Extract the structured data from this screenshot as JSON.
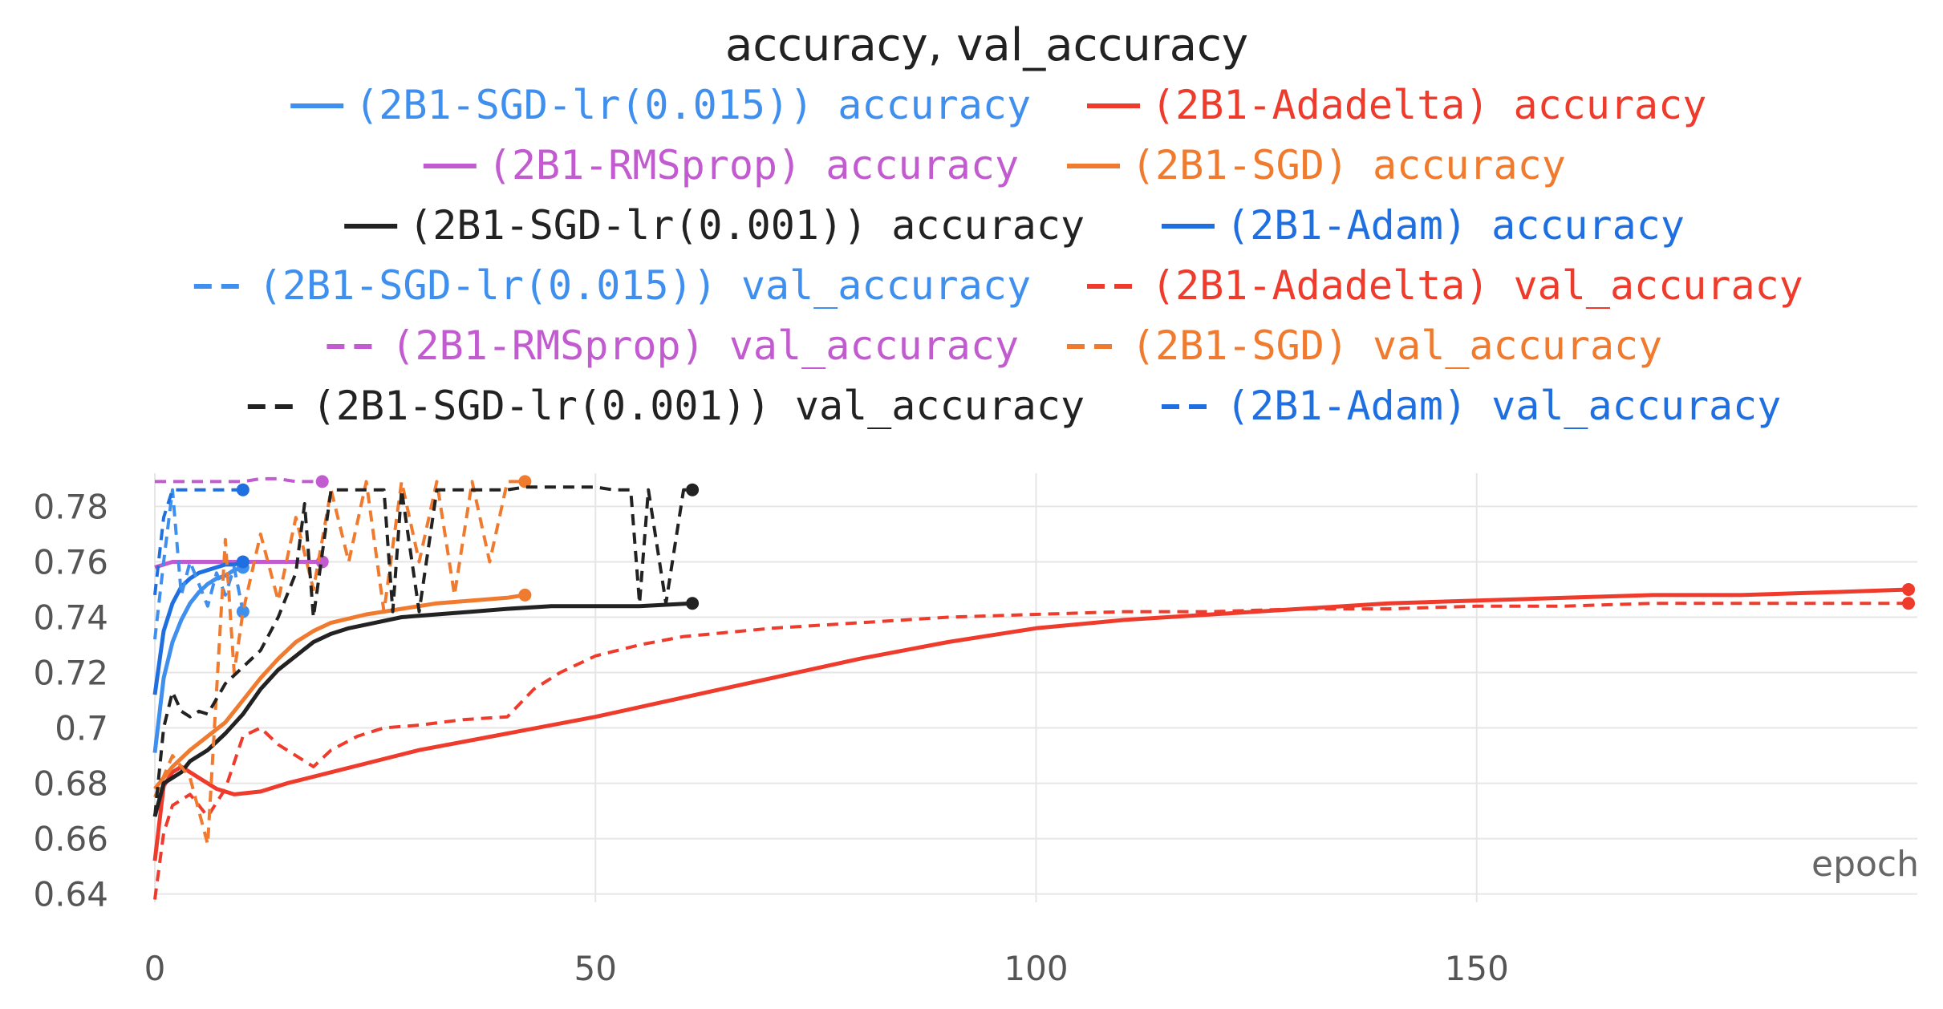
{
  "chart_data": {
    "type": "line",
    "title": "accuracy, val_accuracy",
    "xlabel": "epoch",
    "ylabel": "",
    "xlim": [
      0,
      200
    ],
    "ylim": [
      0.637,
      0.792
    ],
    "x_ticks": [
      0,
      50,
      100,
      150
    ],
    "y_ticks": [
      0.64,
      0.66,
      0.68,
      0.7,
      0.72,
      0.74,
      0.76,
      0.78
    ],
    "x_tick_labels": [
      "0",
      "50",
      "100",
      "150"
    ],
    "y_tick_labels": [
      "0.64",
      "0.66",
      "0.68",
      "0.7",
      "0.72",
      "0.74",
      "0.76",
      "0.78"
    ],
    "grid": true,
    "legend_position": "top",
    "series": [
      {
        "name": "(2B1-SGD-lr(0.015)) accuracy",
        "color": "#3f8fef",
        "dashed": false,
        "x": [
          0,
          1,
          2,
          3,
          4,
          5,
          6,
          7,
          8,
          9,
          10
        ],
        "y": [
          0.691,
          0.718,
          0.731,
          0.739,
          0.745,
          0.749,
          0.752,
          0.754,
          0.755,
          0.757,
          0.758
        ]
      },
      {
        "name": "(2B1-Adadelta) accuracy",
        "color": "#ef3b2c",
        "dashed": false,
        "x": [
          0,
          1,
          2,
          3,
          5,
          7,
          9,
          12,
          15,
          20,
          25,
          30,
          40,
          50,
          60,
          70,
          80,
          90,
          100,
          110,
          120,
          130,
          140,
          150,
          160,
          170,
          180,
          190,
          199
        ],
        "y": [
          0.652,
          0.679,
          0.684,
          0.686,
          0.682,
          0.678,
          0.676,
          0.677,
          0.68,
          0.684,
          0.688,
          0.692,
          0.698,
          0.704,
          0.711,
          0.718,
          0.725,
          0.731,
          0.736,
          0.739,
          0.741,
          0.743,
          0.745,
          0.746,
          0.747,
          0.748,
          0.748,
          0.749,
          0.75
        ]
      },
      {
        "name": "(2B1-RMSprop) accuracy",
        "color": "#c25bd0",
        "dashed": false,
        "x": [
          0,
          2,
          5,
          8,
          10,
          13,
          16,
          19
        ],
        "y": [
          0.758,
          0.76,
          0.76,
          0.76,
          0.76,
          0.76,
          0.76,
          0.76
        ]
      },
      {
        "name": "(2B1-SGD) accuracy",
        "color": "#f07a2e",
        "dashed": false,
        "x": [
          0,
          2,
          4,
          6,
          8,
          10,
          12,
          14,
          16,
          18,
          20,
          24,
          28,
          32,
          36,
          40,
          42
        ],
        "y": [
          0.678,
          0.686,
          0.692,
          0.697,
          0.702,
          0.71,
          0.718,
          0.725,
          0.731,
          0.735,
          0.738,
          0.741,
          0.743,
          0.745,
          0.746,
          0.747,
          0.748
        ]
      },
      {
        "name": "(2B1-SGD-lr(0.001)) accuracy",
        "color": "#222222",
        "dashed": false,
        "x": [
          0,
          1,
          2,
          3,
          4,
          5,
          6,
          8,
          10,
          12,
          14,
          16,
          18,
          20,
          22,
          25,
          28,
          32,
          36,
          40,
          45,
          50,
          55,
          61
        ],
        "y": [
          0.668,
          0.68,
          0.682,
          0.684,
          0.688,
          0.69,
          0.692,
          0.698,
          0.705,
          0.714,
          0.721,
          0.726,
          0.731,
          0.734,
          0.736,
          0.738,
          0.74,
          0.741,
          0.742,
          0.743,
          0.744,
          0.744,
          0.744,
          0.745
        ]
      },
      {
        "name": "(2B1-Adam) accuracy",
        "color": "#1f6fe0",
        "dashed": false,
        "x": [
          0,
          1,
          2,
          3,
          4,
          5,
          6,
          7,
          8,
          9,
          10
        ],
        "y": [
          0.712,
          0.735,
          0.745,
          0.751,
          0.754,
          0.756,
          0.757,
          0.758,
          0.759,
          0.759,
          0.76
        ]
      },
      {
        "name": "(2B1-SGD-lr(0.015)) val_accuracy",
        "color": "#3f8fef",
        "dashed": true,
        "x": [
          0,
          1,
          2,
          3,
          4,
          5,
          6,
          7,
          8,
          9,
          10
        ],
        "y": [
          0.732,
          0.76,
          0.786,
          0.748,
          0.76,
          0.752,
          0.744,
          0.756,
          0.748,
          0.758,
          0.742
        ]
      },
      {
        "name": "(2B1-Adadelta) val_accuracy",
        "color": "#ef3b2c",
        "dashed": true,
        "x": [
          0,
          1,
          2,
          4,
          6,
          8,
          10,
          12,
          14,
          16,
          18,
          20,
          23,
          26,
          30,
          35,
          40,
          43,
          46,
          50,
          55,
          60,
          70,
          80,
          90,
          100,
          110,
          120,
          130,
          140,
          150,
          160,
          170,
          180,
          190,
          199
        ],
        "y": [
          0.638,
          0.662,
          0.672,
          0.676,
          0.668,
          0.678,
          0.697,
          0.7,
          0.694,
          0.69,
          0.686,
          0.692,
          0.697,
          0.7,
          0.701,
          0.703,
          0.704,
          0.714,
          0.72,
          0.726,
          0.73,
          0.733,
          0.736,
          0.738,
          0.74,
          0.741,
          0.742,
          0.742,
          0.743,
          0.743,
          0.744,
          0.744,
          0.745,
          0.745,
          0.745,
          0.745
        ]
      },
      {
        "name": "(2B1-RMSprop) val_accuracy",
        "color": "#c25bd0",
        "dashed": true,
        "x": [
          0,
          2,
          4,
          6,
          8,
          10,
          12,
          14,
          16,
          18,
          19
        ],
        "y": [
          0.789,
          0.789,
          0.789,
          0.789,
          0.789,
          0.789,
          0.79,
          0.79,
          0.789,
          0.789,
          0.789
        ]
      },
      {
        "name": "(2B1-SGD) val_accuracy",
        "color": "#f07a2e",
        "dashed": true,
        "x": [
          0,
          2,
          4,
          6,
          8,
          9,
          10,
          12,
          14,
          16,
          18,
          20,
          22,
          24,
          26,
          28,
          30,
          32,
          34,
          36,
          38,
          40,
          42
        ],
        "y": [
          0.675,
          0.69,
          0.682,
          0.658,
          0.768,
          0.72,
          0.742,
          0.77,
          0.746,
          0.776,
          0.75,
          0.786,
          0.76,
          0.789,
          0.742,
          0.789,
          0.76,
          0.789,
          0.748,
          0.789,
          0.76,
          0.789,
          0.789
        ]
      },
      {
        "name": "(2B1-SGD-lr(0.001)) val_accuracy",
        "color": "#222222",
        "dashed": true,
        "x": [
          0,
          1,
          2,
          3,
          4,
          5,
          6,
          8,
          10,
          12,
          14,
          16,
          17,
          18,
          20,
          22,
          24,
          26,
          27,
          28,
          30,
          32,
          34,
          36,
          38,
          40,
          42,
          44,
          46,
          48,
          50,
          52,
          54,
          55,
          56,
          58,
          60,
          61
        ],
        "y": [
          0.668,
          0.7,
          0.713,
          0.706,
          0.704,
          0.706,
          0.705,
          0.716,
          0.722,
          0.728,
          0.74,
          0.756,
          0.781,
          0.74,
          0.786,
          0.786,
          0.786,
          0.786,
          0.742,
          0.786,
          0.742,
          0.786,
          0.786,
          0.786,
          0.786,
          0.786,
          0.787,
          0.787,
          0.787,
          0.787,
          0.787,
          0.786,
          0.786,
          0.745,
          0.786,
          0.745,
          0.786,
          0.786
        ]
      },
      {
        "name": "(2B1-Adam) val_accuracy",
        "color": "#1f6fe0",
        "dashed": true,
        "x": [
          0,
          1,
          2,
          3,
          4,
          5,
          6,
          8,
          10
        ],
        "y": [
          0.748,
          0.776,
          0.786,
          0.786,
          0.786,
          0.786,
          0.786,
          0.786,
          0.786
        ]
      }
    ]
  }
}
